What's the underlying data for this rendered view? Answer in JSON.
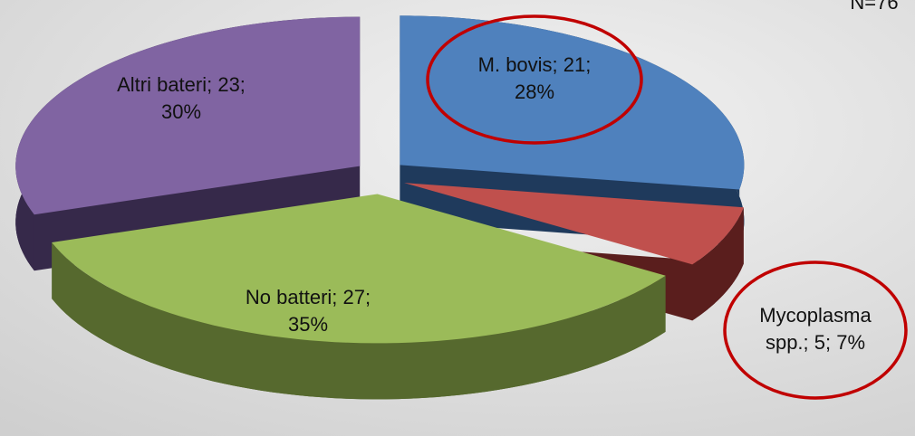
{
  "chart_data": {
    "type": "pie",
    "annotation": "N=76",
    "values": [
      21,
      5,
      27,
      23
    ],
    "colors": [
      "#4f81bd",
      "#c0504d",
      "#9bbb59",
      "#8064a2"
    ],
    "side_colors": [
      "#1f3a5c",
      "#5a1e1d",
      "#56692e",
      "#36294a"
    ],
    "labels": [
      [
        "M. bovis; 21;",
        "28%"
      ],
      [
        "Mycoplasma",
        "spp.; 5; 7%"
      ],
      [
        "No batteri; 27;",
        "35%"
      ],
      [
        "Altri bateri; 23;",
        "30%"
      ]
    ],
    "highlighted": [
      0,
      1
    ]
  }
}
